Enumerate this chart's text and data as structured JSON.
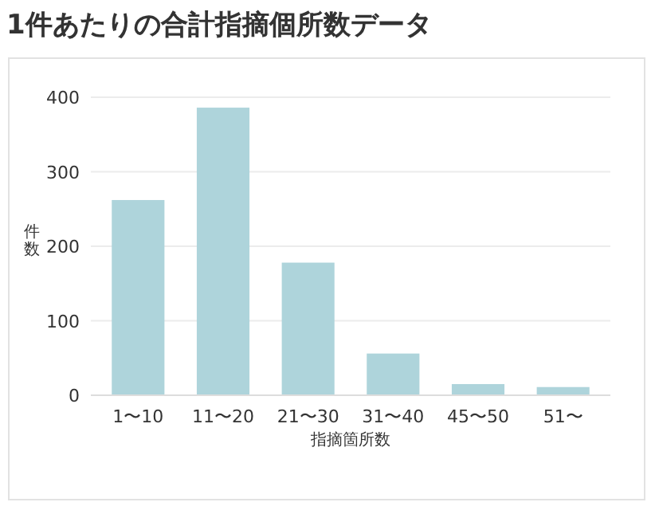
{
  "chart_data": {
    "type": "bar",
    "title": "1件あたりの合計指摘個所数データ",
    "xlabel": "指摘箇所数",
    "ylabel": "件数",
    "categories": [
      "1〜10",
      "11〜20",
      "21〜30",
      "31〜40",
      "45〜50",
      "51〜"
    ],
    "values": [
      262,
      386,
      178,
      56,
      15,
      11
    ],
    "color": "#aed4db",
    "ylim": [
      0,
      400
    ],
    "yticks": [
      0,
      100,
      200,
      300,
      400
    ],
    "grid": "y"
  }
}
